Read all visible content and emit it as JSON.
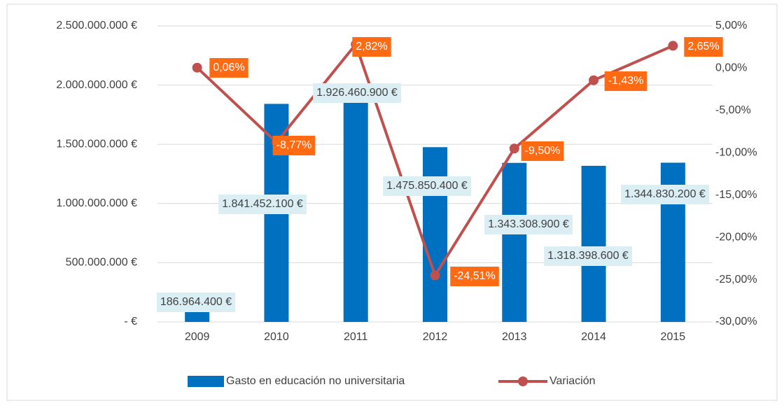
{
  "chart_data": {
    "type": "bar_line",
    "categories": [
      "2009",
      "2010",
      "2011",
      "2012",
      "2013",
      "2014",
      "2015"
    ],
    "series": [
      {
        "name": "Gasto en educación no universitaria",
        "type": "bar",
        "color": "#0070c0",
        "values": [
          186964400,
          1841452100,
          1926460900,
          1475850400,
          1343308900,
          1318398600,
          1344830200
        ],
        "value_labels": [
          "186.964.400 €",
          "1.841.452.100 €",
          "1.926.460.900 €",
          "1.475.850.400 €",
          "1.343.308.900 €",
          "1.318.398.600 €",
          "1.344.830.200 €"
        ]
      },
      {
        "name": "Variación",
        "type": "line",
        "axis": "y2",
        "color": "#c0504d",
        "values": [
          0.06,
          -8.77,
          2.82,
          -24.51,
          -9.5,
          -1.43,
          2.65
        ],
        "value_labels": [
          "0,06%",
          "-8,77%",
          "2,82%",
          "-24,51%",
          "-9,50%",
          "-1,43%",
          "2,65%"
        ]
      }
    ],
    "ylim": [
      0,
      2500000000
    ],
    "yticks": [
      {
        "value": 0,
        "label": "-  €"
      },
      {
        "value": 500000000,
        "label": "500.000.000 €"
      },
      {
        "value": 1000000000,
        "label": "1.000.000.000 €"
      },
      {
        "value": 1500000000,
        "label": "1.500.000.000 €"
      },
      {
        "value": 2000000000,
        "label": "2.000.000.000 €"
      },
      {
        "value": 2500000000,
        "label": "2.500.000.000 €"
      }
    ],
    "y2lim": [
      -30,
      5
    ],
    "y2ticks": [
      {
        "value": -30,
        "label": "-30,00%"
      },
      {
        "value": -25,
        "label": "-25,00%"
      },
      {
        "value": -20,
        "label": "-20,00%"
      },
      {
        "value": -15,
        "label": "-15,00%"
      },
      {
        "value": -10,
        "label": "-10,00%"
      },
      {
        "value": -5,
        "label": "-5,00%"
      },
      {
        "value": 0,
        "label": "0,00%"
      },
      {
        "value": 5,
        "label": "5,00%"
      }
    ],
    "grid": true,
    "legend": "bottom"
  }
}
